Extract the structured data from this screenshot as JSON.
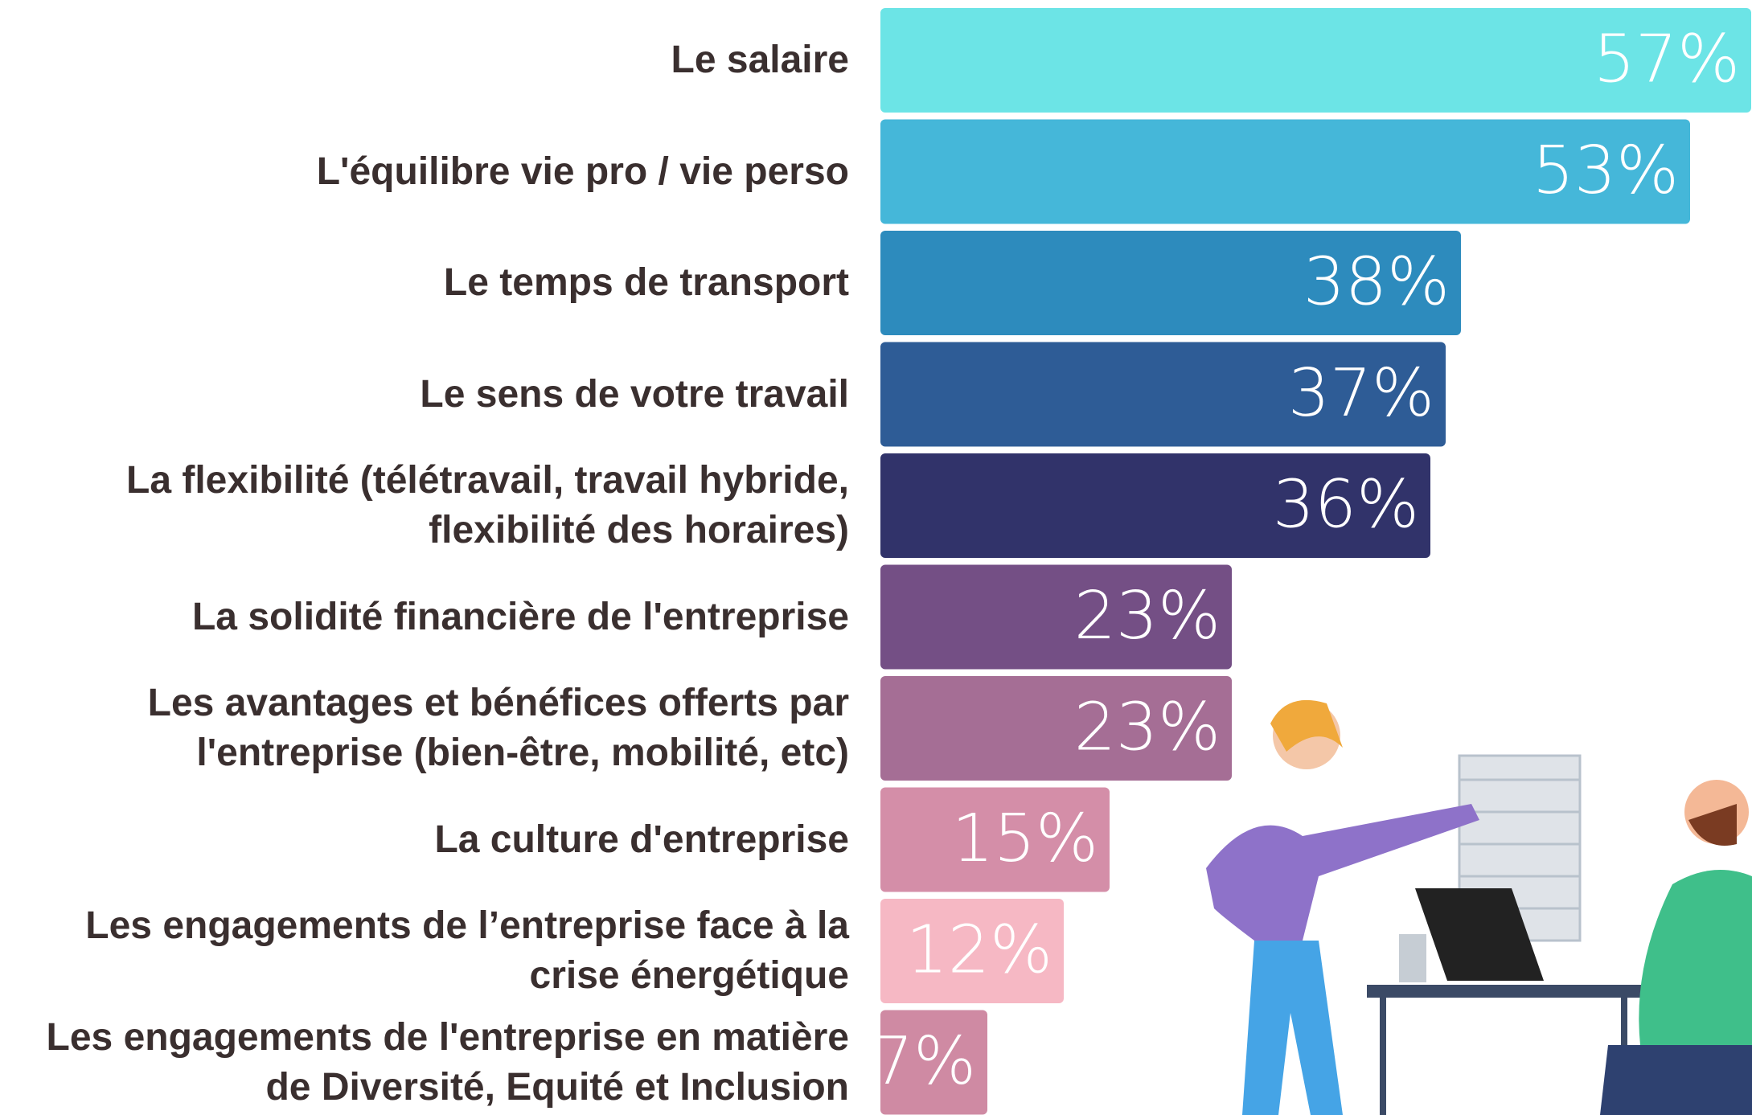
{
  "chart_data": {
    "type": "bar",
    "orientation": "horizontal",
    "categories": [
      "Le salaire",
      "L'équilibre vie pro / vie perso",
      "Le temps de transport",
      "Le sens de votre travail",
      "La flexibilité (télétravail, travail hybride, flexibilité des horaires)",
      "La solidité financière de l'entreprise",
      "Les avantages et bénéfices offerts par l'entreprise (bien-être, mobilité, etc)",
      "La culture d'entreprise",
      "Les engagements de l’entreprise face à la crise énergétique",
      "Les engagements de l'entreprise en matière de Diversité, Equité et Inclusion"
    ],
    "values": [
      57,
      53,
      38,
      37,
      36,
      23,
      23,
      15,
      12,
      7
    ],
    "value_labels": [
      "57%",
      "53%",
      "38%",
      "37%",
      "36%",
      "23%",
      "23%",
      "15%",
      "12%",
      "7%"
    ],
    "colors": [
      "#6ce4e6",
      "#45b7d9",
      "#2d8bbd",
      "#2e5c96",
      "#31336a",
      "#744f85",
      "#a56e95",
      "#d48ea8",
      "#f6b8c4",
      "#cf8aa3"
    ]
  }
}
